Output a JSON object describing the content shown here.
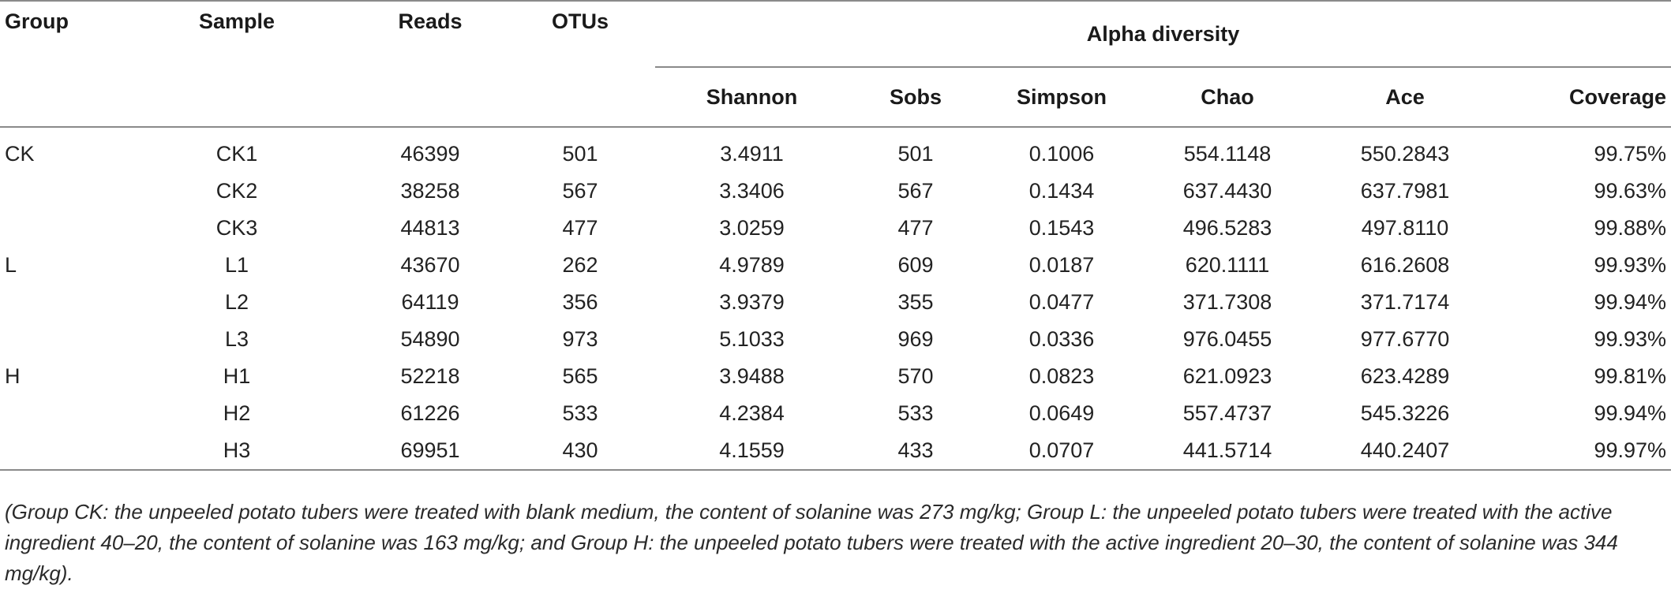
{
  "headers": {
    "group": "Group",
    "sample": "Sample",
    "reads": "Reads",
    "otus": "OTUs",
    "alpha": "Alpha diversity",
    "shannon": "Shannon",
    "sobs": "Sobs",
    "simpson": "Simpson",
    "chao": "Chao",
    "ace": "Ace",
    "coverage": "Coverage"
  },
  "rows": [
    {
      "group": "CK",
      "sample": "CK1",
      "reads": "46399",
      "otus": "501",
      "shannon": "3.4911",
      "sobs": "501",
      "simpson": "0.1006",
      "chao": "554.1148",
      "ace": "550.2843",
      "coverage": "99.75%"
    },
    {
      "group": "",
      "sample": "CK2",
      "reads": "38258",
      "otus": "567",
      "shannon": "3.3406",
      "sobs": "567",
      "simpson": "0.1434",
      "chao": "637.4430",
      "ace": "637.7981",
      "coverage": "99.63%"
    },
    {
      "group": "",
      "sample": "CK3",
      "reads": "44813",
      "otus": "477",
      "shannon": "3.0259",
      "sobs": "477",
      "simpson": "0.1543",
      "chao": "496.5283",
      "ace": "497.8110",
      "coverage": "99.88%"
    },
    {
      "group": "L",
      "sample": "L1",
      "reads": "43670",
      "otus": "262",
      "shannon": "4.9789",
      "sobs": "609",
      "simpson": "0.0187",
      "chao": "620.1111",
      "ace": "616.2608",
      "coverage": "99.93%"
    },
    {
      "group": "",
      "sample": "L2",
      "reads": "64119",
      "otus": "356",
      "shannon": "3.9379",
      "sobs": "355",
      "simpson": "0.0477",
      "chao": "371.7308",
      "ace": "371.7174",
      "coverage": "99.94%"
    },
    {
      "group": "",
      "sample": "L3",
      "reads": "54890",
      "otus": "973",
      "shannon": "5.1033",
      "sobs": "969",
      "simpson": "0.0336",
      "chao": "976.0455",
      "ace": "977.6770",
      "coverage": "99.93%"
    },
    {
      "group": "H",
      "sample": "H1",
      "reads": "52218",
      "otus": "565",
      "shannon": "3.9488",
      "sobs": "570",
      "simpson": "0.0823",
      "chao": "621.0923",
      "ace": "623.4289",
      "coverage": "99.81%"
    },
    {
      "group": "",
      "sample": "H2",
      "reads": "61226",
      "otus": "533",
      "shannon": "4.2384",
      "sobs": "533",
      "simpson": "0.0649",
      "chao": "557.4737",
      "ace": "545.3226",
      "coverage": "99.94%"
    },
    {
      "group": "",
      "sample": "H3",
      "reads": "69951",
      "otus": "430",
      "shannon": "4.1559",
      "sobs": "433",
      "simpson": "0.0707",
      "chao": "441.5714",
      "ace": "440.2407",
      "coverage": "99.97%"
    }
  ],
  "footnote": "(Group CK: the unpeeled potato tubers were treated with blank medium, the content of solanine was 273 mg/kg; Group L: the unpeeled potato tubers were treated with the active ingredient 40–20, the content of solanine was 163 mg/kg; and Group H: the unpeeled potato tubers were treated with the active ingredient 20–30, the content of solanine was 344 mg/kg)."
}
